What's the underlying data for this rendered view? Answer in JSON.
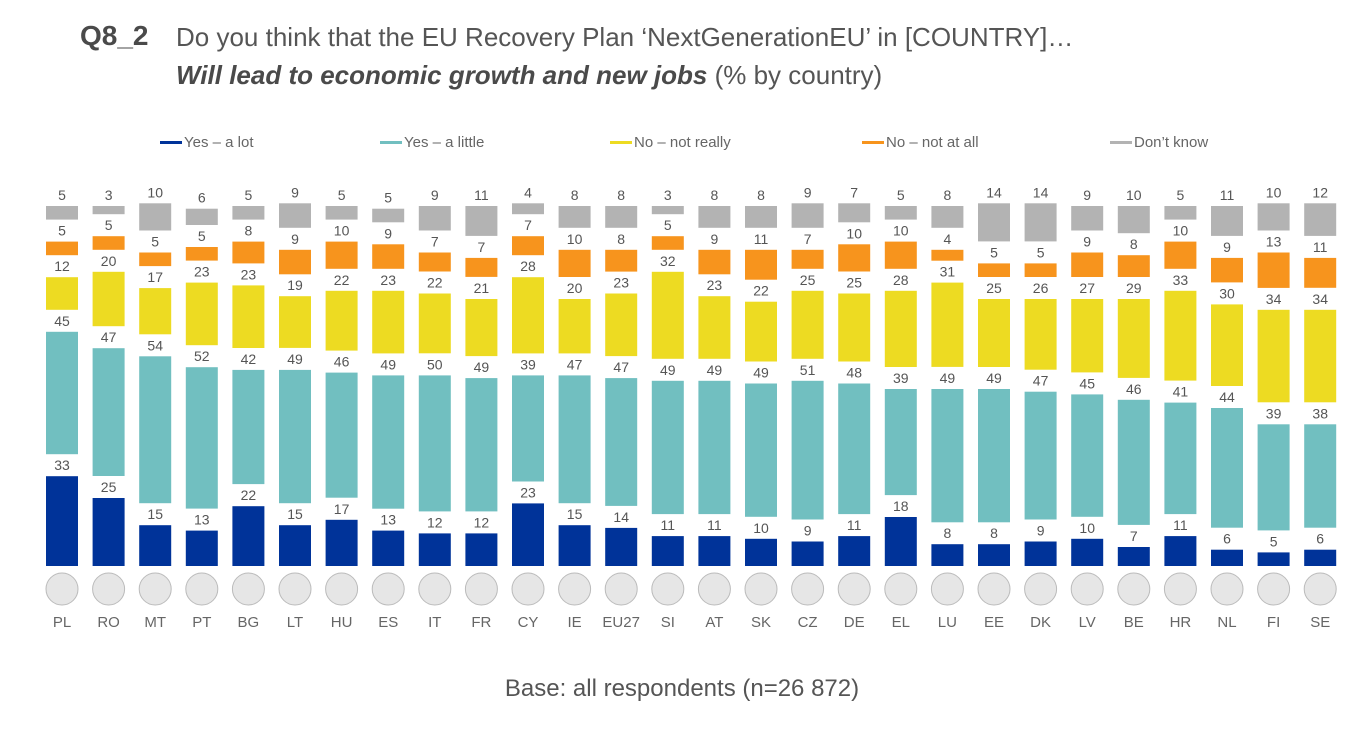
{
  "header": {
    "code": "Q8_2",
    "question": "Do you think that the EU Recovery Plan ‘NextGenerationEU’ in [COUNTRY]…",
    "subquestion_emph": "Will lead to economic growth and new jobs",
    "subquestion_rest": " (% by country)"
  },
  "footer": {
    "base": "Base: all respondents (n=26 872)"
  },
  "chart_data": {
    "type": "bar",
    "stacked": true,
    "title": "Q8_2 Do you think that the EU Recovery Plan ‘NextGenerationEU’ in [COUNTRY]… Will lead to economic growth and new jobs (% by country)",
    "legend_position": "top",
    "categories": [
      "PL",
      "RO",
      "MT",
      "PT",
      "BG",
      "LT",
      "HU",
      "ES",
      "IT",
      "FR",
      "CY",
      "IE",
      "EU27",
      "SI",
      "AT",
      "SK",
      "CZ",
      "DE",
      "EL",
      "LU",
      "EE",
      "DK",
      "LV",
      "BE",
      "HR",
      "NL",
      "FI",
      "SE"
    ],
    "series": [
      {
        "name": "Yes – a lot",
        "color": "#003399",
        "values": [
          33,
          25,
          15,
          13,
          22,
          15,
          17,
          13,
          12,
          12,
          23,
          15,
          14,
          11,
          11,
          10,
          9,
          11,
          18,
          8,
          8,
          9,
          10,
          7,
          11,
          6,
          5,
          6
        ]
      },
      {
        "name": "Yes – a little",
        "color": "#71BFC0",
        "values": [
          45,
          47,
          54,
          52,
          42,
          49,
          46,
          49,
          50,
          49,
          39,
          47,
          47,
          49,
          49,
          49,
          51,
          48,
          39,
          49,
          49,
          47,
          45,
          46,
          41,
          44,
          39,
          38
        ]
      },
      {
        "name": "No – not really",
        "color": "#EDDB22",
        "values": [
          12,
          20,
          17,
          23,
          23,
          19,
          22,
          23,
          22,
          21,
          28,
          20,
          23,
          32,
          23,
          22,
          25,
          25,
          28,
          31,
          25,
          26,
          27,
          29,
          33,
          30,
          34,
          34
        ]
      },
      {
        "name": "No – not at all",
        "color": "#F7941D",
        "values": [
          5,
          5,
          5,
          5,
          8,
          9,
          10,
          9,
          7,
          7,
          7,
          10,
          8,
          5,
          9,
          11,
          7,
          10,
          10,
          4,
          5,
          5,
          9,
          8,
          10,
          9,
          13,
          11
        ]
      },
      {
        "name": "Don’t know",
        "color": "#B3B3B3",
        "values": [
          5,
          3,
          10,
          6,
          5,
          9,
          5,
          5,
          9,
          11,
          4,
          8,
          8,
          3,
          8,
          8,
          9,
          7,
          5,
          8,
          14,
          14,
          9,
          10,
          5,
          11,
          10,
          12
        ]
      }
    ]
  }
}
